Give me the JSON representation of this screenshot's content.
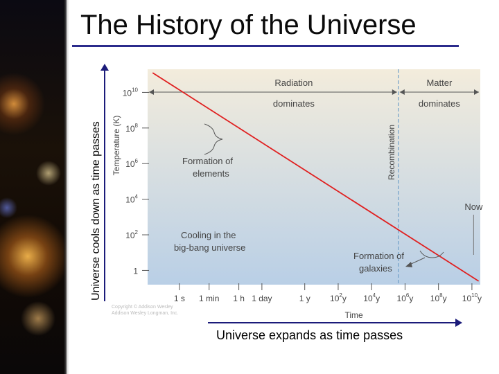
{
  "page": {
    "title": "The History of the Universe",
    "y_arrow_label": "Universe cools down as time passes",
    "x_arrow_label": "Universe expands as time passes"
  },
  "chart_data": {
    "type": "line",
    "xlabel": "Time",
    "ylabel": "Temperature (K)",
    "x_scale": "log",
    "y_scale": "log",
    "x_ticks": [
      {
        "t": "1 s",
        "label_main": "1 s",
        "label_sup": ""
      },
      {
        "t": "1 min",
        "label_main": "1 min",
        "label_sup": ""
      },
      {
        "t": "1 h",
        "label_main": "1 h",
        "label_sup": ""
      },
      {
        "t": "1 day",
        "label_main": "1 day",
        "label_sup": ""
      },
      {
        "t": "1 y",
        "label_main": "1 y",
        "label_sup": ""
      },
      {
        "t": "10^2 y",
        "label_main": "10",
        "label_sup": "2",
        "label_unit": "y"
      },
      {
        "t": "10^4 y",
        "label_main": "10",
        "label_sup": "4",
        "label_unit": "y"
      },
      {
        "t": "10^6 y",
        "label_main": "10",
        "label_sup": "6",
        "label_unit": "y"
      },
      {
        "t": "10^8 y",
        "label_main": "10",
        "label_sup": "8",
        "label_unit": "y"
      },
      {
        "t": "10^10 y",
        "label_main": "10",
        "label_sup": "10",
        "label_unit": "y"
      }
    ],
    "y_ticks": [
      {
        "value": 1,
        "label_main": "1",
        "label_sup": ""
      },
      {
        "value": 100,
        "label_main": "10",
        "label_sup": "2"
      },
      {
        "value": 10000,
        "label_main": "10",
        "label_sup": "4"
      },
      {
        "value": 1000000,
        "label_main": "10",
        "label_sup": "6"
      },
      {
        "value": 100000000,
        "label_main": "10",
        "label_sup": "8"
      },
      {
        "value": 10000000000,
        "label_main": "10",
        "label_sup": "10"
      }
    ],
    "series": [
      {
        "color": "#e02020",
        "points": [
          {
            "t_log10_seconds": -1.6,
            "temperature_log10": 11.1
          },
          {
            "t_log10_seconds": 17.9,
            "temperature_log10": -0.6
          }
        ]
      }
    ],
    "recombination_t_log10_seconds": 13.1,
    "now_t_log10_seconds": 17.6,
    "labels": {
      "radiation": [
        "Radiation",
        "dominates"
      ],
      "matter": [
        "Matter",
        "dominates"
      ],
      "recombination": "Recombination",
      "now": "Now",
      "formation_elements": [
        "Formation of",
        "elements"
      ],
      "cooling": [
        "Cooling in the",
        "big-bang universe"
      ],
      "formation_galaxies": [
        "Formation of",
        "galaxies"
      ]
    },
    "credit_lines": [
      "Copyright © Addison Wesley",
      "Addison Wesley Longman, Inc."
    ],
    "colors": {
      "background_top": "#f3ecdc",
      "background_bottom": "#b9cfe6",
      "line": "#e02020",
      "divider": "#6f9fc8",
      "text": "#444444"
    },
    "grid": false
  }
}
